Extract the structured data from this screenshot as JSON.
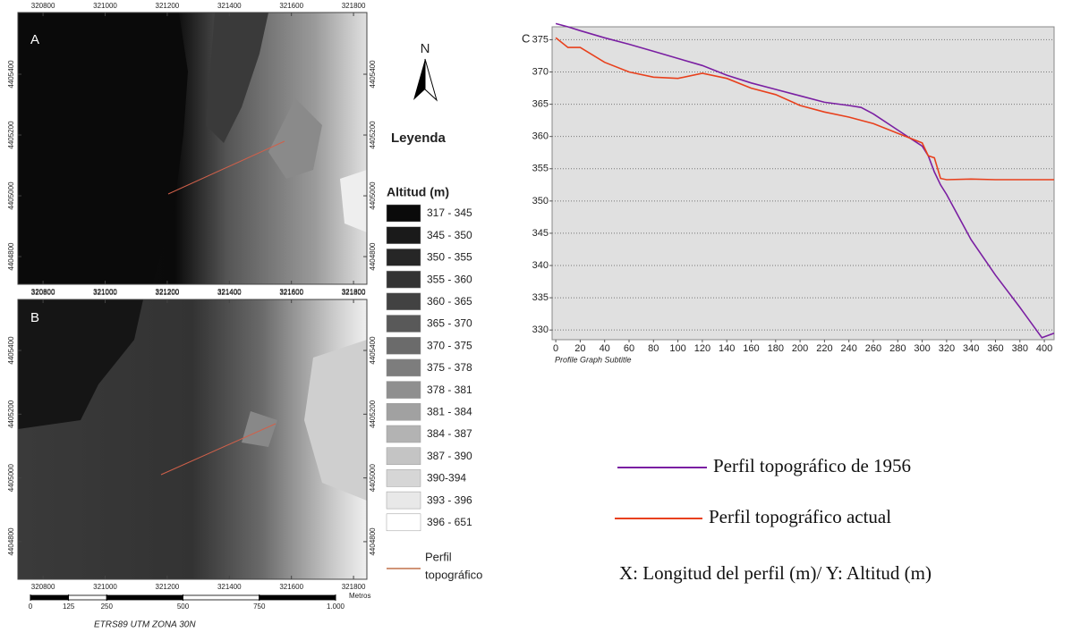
{
  "maps": {
    "xlim": [
      320719,
      321843
    ],
    "xticks": [
      320800,
      321000,
      321200,
      321400,
      321600,
      321800
    ],
    "yticks": [
      4405400,
      4405200,
      4405000,
      4404800
    ],
    "panels": [
      {
        "label": "A",
        "ylim": [
          4404709,
          4405603
        ]
      },
      {
        "label": "B",
        "ylim": [
          4404682,
          4405560
        ]
      }
    ]
  },
  "scale_bar": {
    "unit": "Metros",
    "xlim": [
      0,
      1000
    ],
    "ticks": [
      0,
      125,
      250,
      500,
      750,
      {
        "value": 1000,
        "label": "1.000"
      }
    ],
    "crs": "ETRS89 UTM ZONA 30N"
  },
  "legend": {
    "north": "N",
    "title": "Leyenda",
    "subtitle": "Altitud (m)",
    "classes": [
      {
        "label": "317 - 345",
        "color": "#0a0a0a"
      },
      {
        "label": "345 - 350",
        "color": "#1a1a1a"
      },
      {
        "label": "350 - 355",
        "color": "#262626"
      },
      {
        "label": "355 - 360",
        "color": "#333333"
      },
      {
        "label": "360 - 365",
        "color": "#424242"
      },
      {
        "label": "365 - 370",
        "color": "#595959"
      },
      {
        "label": "370 - 375",
        "color": "#6b6b6b"
      },
      {
        "label": "375 - 378",
        "color": "#7d7d7d"
      },
      {
        "label": "378 - 381",
        "color": "#8f8f8f"
      },
      {
        "label": "381 - 384",
        "color": "#a1a1a1"
      },
      {
        "label": "384 - 387",
        "color": "#b3b3b3"
      },
      {
        "label": "387 - 390",
        "color": "#c4c4c4"
      },
      {
        "label": "390-394",
        "color": "#d6d6d6"
      },
      {
        "label": "393 - 396",
        "color": "#e8e8e8"
      },
      {
        "label": "396 - 651",
        "color": "#ffffff"
      }
    ],
    "profile_label": [
      "Perfil",
      "topográfico"
    ],
    "profile_color": "#c0704a"
  },
  "chart_data": {
    "type": "line",
    "panel_label": "C",
    "subtitle": "Profile Graph Subtitle",
    "axis_note": "X: Longitud del perfil (m)/ Y: Altitud (m)",
    "x": [
      0,
      10,
      20,
      40,
      60,
      80,
      100,
      120,
      140,
      160,
      180,
      200,
      220,
      240,
      250,
      260,
      280,
      300,
      305,
      310,
      315,
      320,
      340,
      360,
      380,
      398,
      408
    ],
    "series": [
      {
        "name": "Perfil topográfico de 1956",
        "color": "#7a1fa2",
        "values": [
          377.5,
          377,
          376.4,
          375.3,
          374.3,
          373.2,
          372.1,
          371,
          369.5,
          368.3,
          367.3,
          366.3,
          365.3,
          364.8,
          364.5,
          363.5,
          361,
          358.5,
          357,
          354.5,
          352.5,
          351,
          344,
          338.5,
          333.5,
          328.8,
          329.5
        ]
      },
      {
        "name": "Perfil topográfico actual",
        "color": "#e8401c",
        "values": [
          375.3,
          373.8,
          373.8,
          371.5,
          370,
          369.2,
          369,
          369.8,
          369,
          367.5,
          366.5,
          364.8,
          363.8,
          363,
          362.5,
          362,
          360.5,
          359,
          357,
          356.7,
          353.5,
          353.3,
          353.4,
          353.3,
          353.3,
          353.3,
          353.3
        ]
      }
    ],
    "xlim": [
      -3,
      408
    ],
    "ylim": [
      328.5,
      377
    ],
    "xticks": [
      0,
      20,
      40,
      60,
      80,
      100,
      120,
      140,
      160,
      180,
      200,
      220,
      240,
      260,
      280,
      300,
      320,
      340,
      360,
      380,
      400
    ],
    "yticks": [
      330,
      335,
      340,
      345,
      350,
      355,
      360,
      365,
      370,
      375
    ],
    "grid": true
  }
}
